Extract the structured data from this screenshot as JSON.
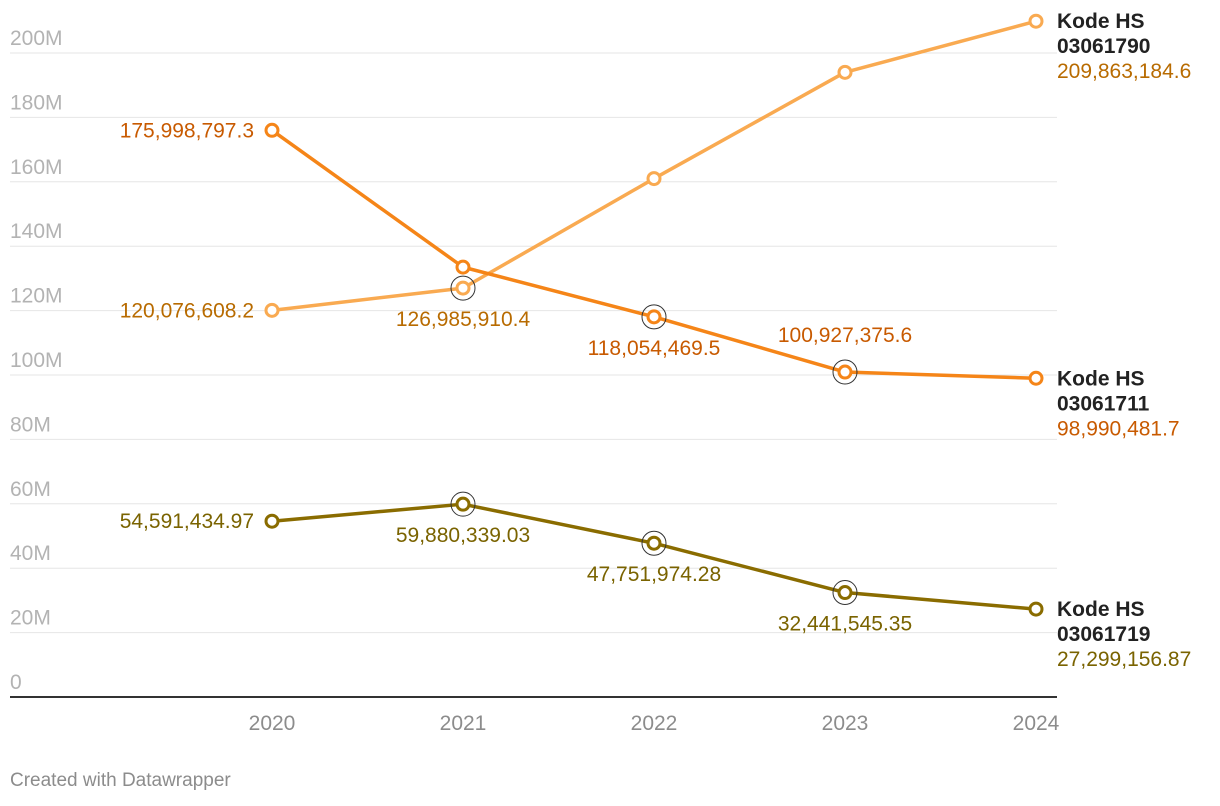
{
  "footer": {
    "credit": "Created with Datawrapper"
  },
  "chart_data": {
    "type": "line",
    "title": "",
    "xlabel": "",
    "ylabel": "",
    "x": [
      "2020",
      "2021",
      "2022",
      "2023",
      "2024"
    ],
    "ylim": [
      0,
      200000000
    ],
    "y_ticks": [
      {
        "value": 0,
        "label": "0"
      },
      {
        "value": 20000000,
        "label": "20M"
      },
      {
        "value": 40000000,
        "label": "40M"
      },
      {
        "value": 60000000,
        "label": "60M"
      },
      {
        "value": 80000000,
        "label": "80M"
      },
      {
        "value": 100000000,
        "label": "100M"
      },
      {
        "value": 120000000,
        "label": "120M"
      },
      {
        "value": 140000000,
        "label": "140M"
      },
      {
        "value": 160000000,
        "label": "160M"
      },
      {
        "value": 180000000,
        "label": "180M"
      },
      {
        "value": 200000000,
        "label": "200M"
      }
    ],
    "grid": true,
    "legend": "direct-labels-right",
    "series": [
      {
        "name_line1": "Kode HS",
        "name_line2": "03061790",
        "color": "#f9aa51",
        "label_color": "#b86b00",
        "values": [
          120076608.2,
          126985910.4,
          161000000,
          194000000,
          209863184.6
        ],
        "value_labels": [
          "120,076,608.2",
          "126,985,910.4",
          "",
          "",
          "209,863,184.6"
        ]
      },
      {
        "name_line1": "Kode HS",
        "name_line2": "03061711",
        "color": "#f58518",
        "label_color": "#c85a00",
        "values": [
          175998797.3,
          133500000,
          118054469.5,
          100927375.6,
          98990481.7
        ],
        "value_labels": [
          "175,998,797.3",
          "",
          "118,054,469.5",
          "100,927,375.6",
          "98,990,481.7"
        ]
      },
      {
        "name_line1": "Kode HS",
        "name_line2": "03061719",
        "color": "#8a6c00",
        "label_color": "#7a6300",
        "values": [
          54591434.97,
          59880339.03,
          47751974.28,
          32441545.35,
          27299156.87
        ],
        "value_labels": [
          "54,591,434.97",
          "59,880,339.03",
          "47,751,974.28",
          "32,441,545.35",
          "27,299,156.87"
        ]
      }
    ]
  }
}
